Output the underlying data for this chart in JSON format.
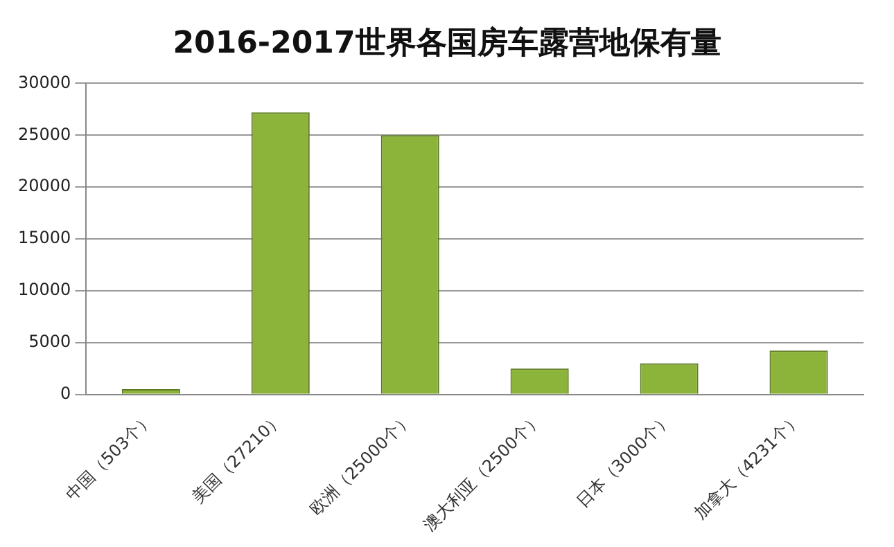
{
  "chart_data": {
    "type": "bar",
    "title": "2016-2017世界各国房车露营地保有量",
    "categories": [
      "中国（503个）",
      "美国（27210）",
      "欧洲（25000个）",
      "澳大利亚（2500个）",
      "日本（3000个）",
      "加拿大（4231个）"
    ],
    "values": [
      503,
      27210,
      25000,
      2500,
      3000,
      4231
    ],
    "color": "#8cb33a",
    "ylim": [
      0,
      30000
    ],
    "yticks": [
      0,
      5000,
      10000,
      15000,
      20000,
      25000,
      30000
    ],
    "grid": "y",
    "legend": false
  }
}
